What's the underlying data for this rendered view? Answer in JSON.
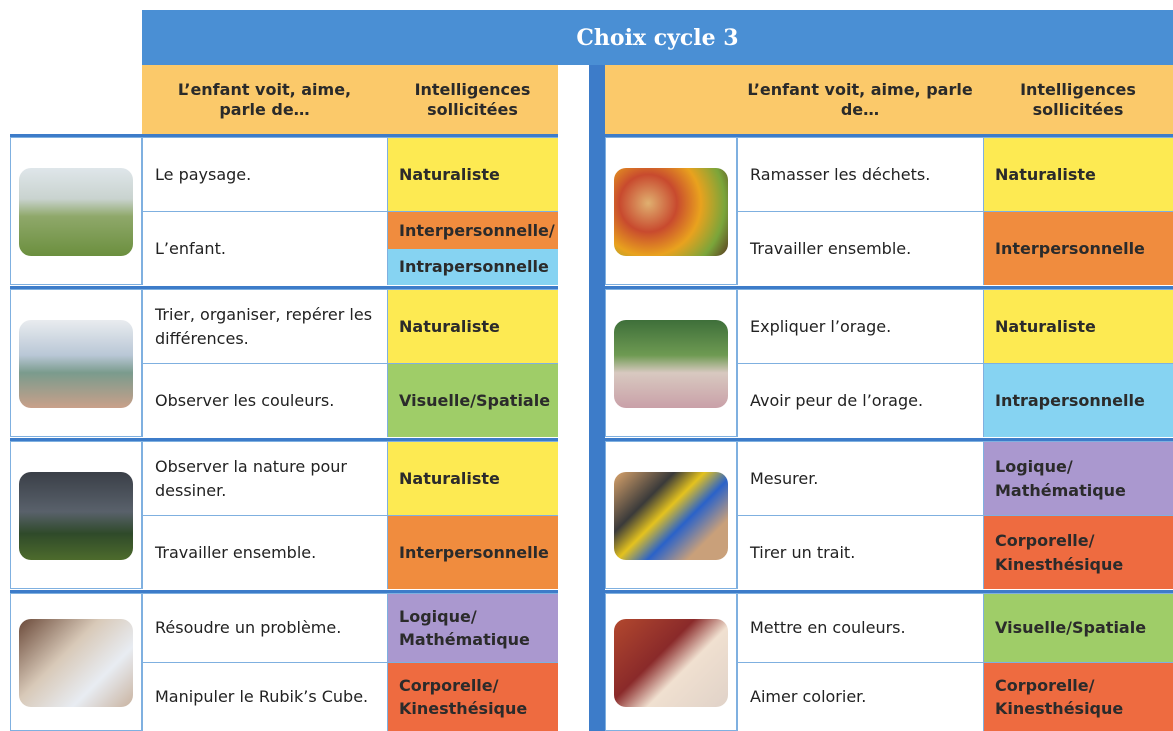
{
  "header": {
    "title": "Choix cycle 3"
  },
  "tables": [
    {
      "columns": [
        "L’enfant voit, aime, parle de…",
        "Intelligences sollicitées"
      ],
      "groups": [
        {
          "rows": [
            {
              "activity": "Le paysage.",
              "intelligence": [
                {
                  "text": "Naturaliste",
                  "color": "#fdea52"
                }
              ]
            },
            {
              "activity": "L’enfant.",
              "intelligence": [
                {
                  "text": "Interpersonnelle/",
                  "color": "#f08c3e"
                },
                {
                  "text": "Intrapersonnelle",
                  "color": "#86d3f2"
                }
              ]
            }
          ]
        },
        {
          "rows": [
            {
              "activity": "Trier, organiser, repérer les différences.",
              "intelligence": [
                {
                  "text": "Naturaliste",
                  "color": "#fdea52"
                }
              ]
            },
            {
              "activity": "Observer les couleurs.",
              "intelligence": [
                {
                  "text": "Visuelle/Spatiale",
                  "color": "#9fcd68"
                }
              ]
            }
          ]
        },
        {
          "rows": [
            {
              "activity": "Observer la nature pour dessiner.",
              "intelligence": [
                {
                  "text": "Naturaliste",
                  "color": "#fdea52"
                }
              ]
            },
            {
              "activity": "Travailler ensemble.",
              "intelligence": [
                {
                  "text": "Interpersonnelle",
                  "color": "#f08c3e"
                }
              ]
            }
          ]
        },
        {
          "rows": [
            {
              "activity": "Résoudre un problème.",
              "intelligence": [
                {
                  "text": "Logique/ Mathématique",
                  "color": "#aa98cf"
                }
              ]
            },
            {
              "activity": "Manipuler le Rubik’s Cube.",
              "intelligence": [
                {
                  "text": "Corporelle/ Kinesthésique",
                  "color": "#ee6b40"
                }
              ]
            }
          ]
        }
      ]
    },
    {
      "columns": [
        "L’enfant voit, aime, parle de…",
        "Intelligences sollicitées"
      ],
      "groups": [
        {
          "rows": [
            {
              "activity": "Ramasser les déchets.",
              "intelligence": [
                {
                  "text": "Naturaliste",
                  "color": "#fdea52"
                }
              ]
            },
            {
              "activity": "Travailler ensemble.",
              "intelligence": [
                {
                  "text": "Interpersonnelle",
                  "color": "#f08c3e"
                }
              ]
            }
          ]
        },
        {
          "rows": [
            {
              "activity": "Expliquer l’orage.",
              "intelligence": [
                {
                  "text": "Naturaliste",
                  "color": "#fdea52"
                }
              ]
            },
            {
              "activity": "Avoir peur de l’orage.",
              "intelligence": [
                {
                  "text": "Intrapersonnelle",
                  "color": "#86d3f2"
                }
              ]
            }
          ]
        },
        {
          "rows": [
            {
              "activity": "Mesurer.",
              "intelligence": [
                {
                  "text": "Logique/ Mathématique",
                  "color": "#aa98cf"
                }
              ]
            },
            {
              "activity": "Tirer un trait.",
              "intelligence": [
                {
                  "text": "Corporelle/ Kinesthésique",
                  "color": "#ee6b40"
                }
              ]
            }
          ]
        },
        {
          "rows": [
            {
              "activity": "Mettre en couleurs.",
              "intelligence": [
                {
                  "text": "Visuelle/Spatiale",
                  "color": "#9fcd68"
                }
              ]
            },
            {
              "activity": "Aimer colorier.",
              "intelligence": [
                {
                  "text": "Corporelle/ Kinesthésique",
                  "color": "#ee6b40"
                }
              ]
            }
          ]
        }
      ]
    }
  ]
}
